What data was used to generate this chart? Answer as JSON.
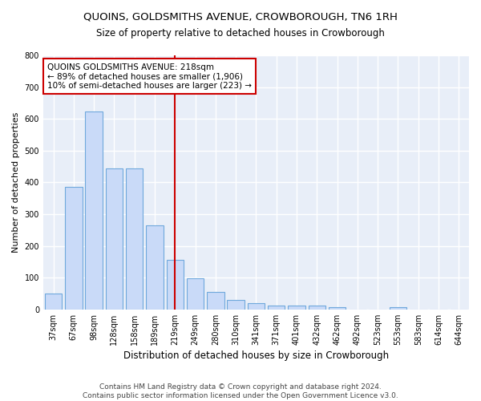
{
  "title": "QUOINS, GOLDSMITHS AVENUE, CROWBOROUGH, TN6 1RH",
  "subtitle": "Size of property relative to detached houses in Crowborough",
  "xlabel": "Distribution of detached houses by size in Crowborough",
  "ylabel": "Number of detached properties",
  "bar_labels": [
    "37sqm",
    "67sqm",
    "98sqm",
    "128sqm",
    "158sqm",
    "189sqm",
    "219sqm",
    "249sqm",
    "280sqm",
    "310sqm",
    "341sqm",
    "371sqm",
    "401sqm",
    "432sqm",
    "462sqm",
    "492sqm",
    "523sqm",
    "553sqm",
    "583sqm",
    "614sqm",
    "644sqm"
  ],
  "bar_values": [
    50,
    385,
    622,
    443,
    443,
    265,
    155,
    98,
    55,
    30,
    20,
    12,
    12,
    13,
    8,
    0,
    0,
    8,
    0,
    0,
    0
  ],
  "bar_color": "#c9daf8",
  "bar_edge_color": "#6fa8dc",
  "figure_background": "#ffffff",
  "plot_background": "#e8eef8",
  "grid_color": "#ffffff",
  "vline_color": "#cc0000",
  "vline_x_index": 6,
  "annotation_text": "QUOINS GOLDSMITHS AVENUE: 218sqm\n← 89% of detached houses are smaller (1,906)\n10% of semi-detached houses are larger (223) →",
  "annotation_box_color": "#ffffff",
  "annotation_box_edge": "#cc0000",
  "ylim": [
    0,
    800
  ],
  "yticks": [
    0,
    100,
    200,
    300,
    400,
    500,
    600,
    700,
    800
  ],
  "footer_text": "Contains HM Land Registry data © Crown copyright and database right 2024.\nContains public sector information licensed under the Open Government Licence v3.0.",
  "title_fontsize": 9.5,
  "subtitle_fontsize": 8.5,
  "xlabel_fontsize": 8.5,
  "ylabel_fontsize": 8,
  "tick_fontsize": 7,
  "annotation_fontsize": 7.5,
  "footer_fontsize": 6.5
}
